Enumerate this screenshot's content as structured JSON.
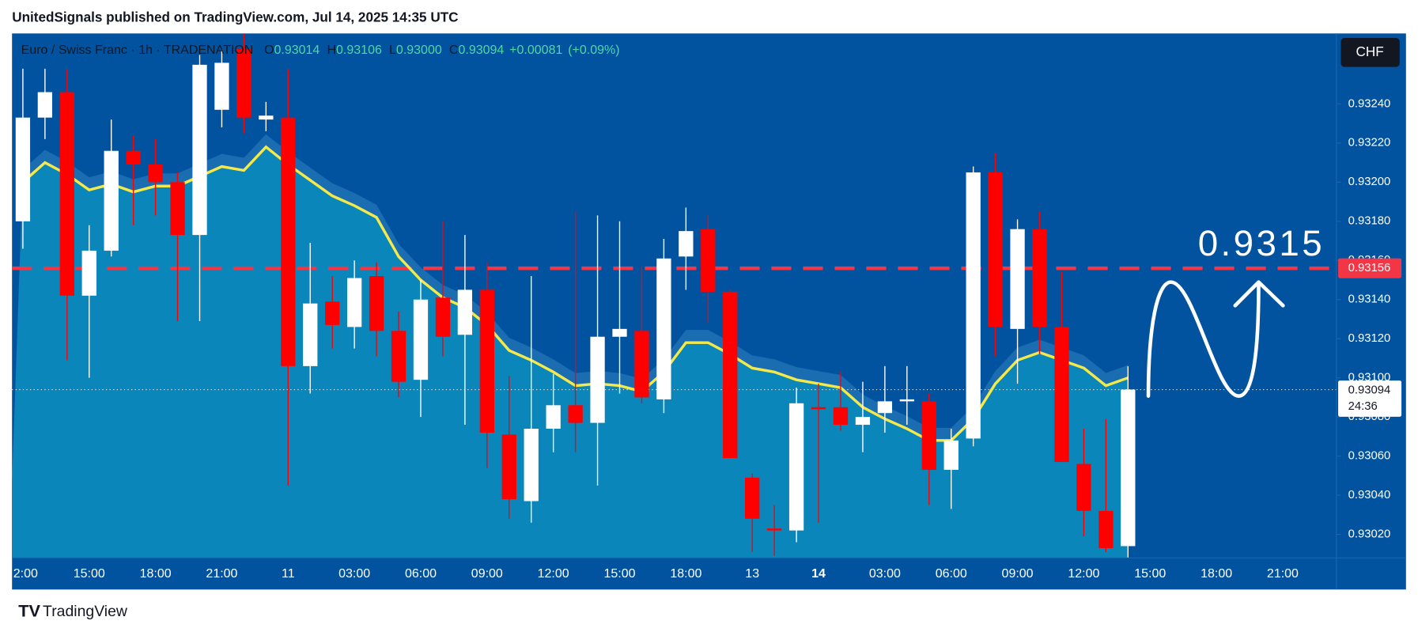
{
  "header": {
    "publisher": "UnitedSignals published on TradingView.com, Jul 14, 2025 14:35 UTC"
  },
  "chart_data": {
    "type": "candlestick",
    "symbol": "Euro / Swiss Franc · 1h · TRADENATION",
    "legend_letters": [
      "O",
      "H",
      "L",
      "C"
    ],
    "legend_values": [
      "0.93014",
      "0.93106",
      "0.93000",
      "0.93094"
    ],
    "change": "+0.00081",
    "change_pct": "(+0.09%)",
    "currency": "CHF",
    "up_color": "#ffffff",
    "down_color": "#ff0000",
    "ema_color": "#f5e94a",
    "area_color": "#0a86bb",
    "band_color": "#1a6db0",
    "background": "#0153a0",
    "categories": [
      "2:00",
      null,
      null,
      "15:00",
      null,
      null,
      "18:00",
      null,
      null,
      "21:00",
      null,
      null,
      "11",
      null,
      null,
      "03:00",
      null,
      null,
      "06:00",
      null,
      null,
      "09:00",
      null,
      null,
      "12:00",
      null,
      null,
      "15:00",
      null,
      null,
      "18:00",
      null,
      null,
      "13",
      null,
      null,
      "14",
      null,
      null,
      "03:00",
      null,
      null,
      "06:00",
      null,
      null,
      "09:00",
      null,
      null,
      "12:00",
      null,
      null,
      "15:00",
      null,
      null,
      "18:00",
      null,
      null,
      "21:00"
    ],
    "open": [
      0.9318,
      0.93233,
      0.93246,
      0.93142,
      0.93165,
      0.93216,
      0.93209,
      0.932,
      0.93173,
      0.93237,
      0.93268,
      0.93232,
      0.93233,
      0.93106,
      0.93139,
      0.93126,
      0.93152,
      0.93124,
      0.93099,
      0.93141,
      0.93122,
      0.93145,
      0.93071,
      0.93037,
      0.93074,
      0.93086,
      0.93077,
      0.93121,
      0.93124,
      0.93089,
      0.93162,
      0.93176,
      0.93144,
      0.93049,
      0.93023,
      0.93022,
      0.93085,
      0.93085,
      0.93076,
      0.93082,
      0.93088,
      0.93088,
      0.93053,
      0.93069,
      0.93205,
      0.93125,
      0.93176,
      0.93126,
      0.93056,
      0.93032,
      0.93014,
      null,
      null,
      null,
      null,
      null,
      null,
      null
    ],
    "high": [
      0.93258,
      0.93258,
      0.93258,
      0.93178,
      0.93232,
      0.93224,
      0.93222,
      0.93205,
      0.93265,
      0.93268,
      0.93276,
      0.93241,
      0.93258,
      0.93169,
      0.93152,
      0.9316,
      0.93159,
      0.93134,
      0.9315,
      0.9318,
      0.93173,
      0.93159,
      0.93101,
      0.93152,
      0.93102,
      0.93185,
      0.93183,
      0.9318,
      0.93157,
      0.93171,
      0.93187,
      0.93183,
      0.93145,
      0.93051,
      0.93035,
      0.93095,
      0.93097,
      0.93103,
      0.93098,
      0.93106,
      0.93106,
      0.93092,
      0.93074,
      0.93208,
      0.93215,
      0.93181,
      0.93185,
      0.93154,
      0.93074,
      0.93079,
      0.93106,
      null,
      null,
      null,
      null,
      null,
      null,
      null
    ],
    "low": [
      0.93166,
      0.93222,
      0.93109,
      0.931,
      0.93162,
      0.93178,
      0.93183,
      0.93129,
      0.93129,
      0.93228,
      0.93225,
      0.93226,
      0.93045,
      0.93092,
      0.93115,
      0.93115,
      0.93111,
      0.9309,
      0.9308,
      0.93111,
      0.93076,
      0.93054,
      0.93028,
      0.93026,
      0.93062,
      0.93062,
      0.93045,
      0.93092,
      0.93087,
      0.93082,
      0.93145,
      0.93128,
      0.93059,
      0.93011,
      0.93009,
      0.93016,
      0.93026,
      0.93073,
      0.93062,
      0.93072,
      0.93076,
      0.93035,
      0.93033,
      0.93065,
      0.93111,
      0.93097,
      0.93112,
      0.93057,
      0.93019,
      0.93011,
      0.93,
      null,
      null,
      null,
      null,
      null,
      null,
      null
    ],
    "close": [
      0.93233,
      0.93246,
      0.93142,
      0.93165,
      0.93216,
      0.93209,
      0.932,
      0.93173,
      0.9326,
      0.93261,
      0.93233,
      0.93234,
      0.93106,
      0.93138,
      0.93127,
      0.93151,
      0.93124,
      0.93098,
      0.9314,
      0.93121,
      0.93145,
      0.93072,
      0.93038,
      0.93074,
      0.93086,
      0.93077,
      0.93121,
      0.93125,
      0.9309,
      0.93161,
      0.93175,
      0.93144,
      0.93059,
      0.93028,
      0.93022,
      0.93087,
      0.93084,
      0.93076,
      0.9308,
      0.93088,
      0.93089,
      0.93053,
      0.93068,
      0.93205,
      0.93126,
      0.93176,
      0.93126,
      0.93057,
      0.93032,
      0.93013,
      0.93094,
      null,
      null,
      null,
      null,
      null,
      null,
      null
    ],
    "ema": [
      0.932,
      0.9321,
      0.93204,
      0.93196,
      0.93199,
      0.93195,
      0.93198,
      0.93198,
      0.93203,
      0.93208,
      0.93206,
      0.93218,
      0.93209,
      0.93201,
      0.93193,
      0.93188,
      0.93182,
      0.93162,
      0.9315,
      0.93141,
      0.93136,
      0.93127,
      0.93114,
      0.93109,
      0.93103,
      0.93096,
      0.93097,
      0.93096,
      0.93093,
      0.93103,
      0.93118,
      0.93118,
      0.93112,
      0.93105,
      0.93103,
      0.93099,
      0.93097,
      0.93095,
      0.93085,
      0.93079,
      0.93074,
      0.93068,
      0.93068,
      0.93079,
      0.93097,
      0.93109,
      0.93113,
      0.93109,
      0.93105,
      0.93096,
      0.931,
      null,
      null,
      null,
      null,
      null,
      null,
      null
    ],
    "ylim": [
      0.93008,
      0.93276
    ],
    "yticks": [
      {
        "value": 0.9324,
        "label": "0.93240"
      },
      {
        "value": 0.9322,
        "label": "0.93220"
      },
      {
        "value": 0.932,
        "label": "0.93200"
      },
      {
        "value": 0.9318,
        "label": "0.93180"
      },
      {
        "value": 0.9316,
        "label": "0.93160"
      },
      {
        "value": 0.9314,
        "label": "0.93140"
      },
      {
        "value": 0.9312,
        "label": "0.93120"
      },
      {
        "value": 0.931,
        "label": "0.93100"
      },
      {
        "value": 0.9308,
        "label": "0.93080"
      },
      {
        "value": 0.9306,
        "label": "0.93060"
      },
      {
        "value": 0.9304,
        "label": "0.93040"
      },
      {
        "value": 0.9302,
        "label": "0.93020"
      }
    ],
    "level_line": {
      "value": 0.93156,
      "label": "0.93156",
      "color": "#f23645"
    },
    "last_price": {
      "value": 0.93094,
      "label": "0.93094",
      "countdown": "24:36"
    },
    "annotation": "0.9315"
  },
  "footer": {
    "brand": "TradingView"
  }
}
